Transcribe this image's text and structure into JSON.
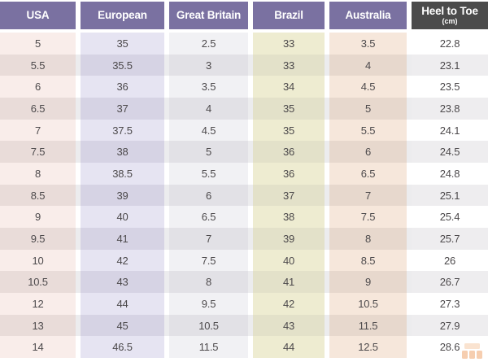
{
  "chart_data": {
    "type": "table",
    "columns": [
      {
        "label": "USA",
        "sub": "",
        "header_bg": "#7a71a1",
        "cell_light": "#f9edea",
        "cell_dark": "#e9dcd9"
      },
      {
        "label": "European",
        "sub": "",
        "header_bg": "#7a71a1",
        "cell_light": "#e6e4f2",
        "cell_dark": "#d6d3e4"
      },
      {
        "label": "Great Britain",
        "sub": "",
        "header_bg": "#7a71a1",
        "cell_light": "#f1f1f4",
        "cell_dark": "#e2e1e6"
      },
      {
        "label": "Brazil",
        "sub": "",
        "header_bg": "#7a71a1",
        "cell_light": "#eeecd1",
        "cell_dark": "#e3e1c9"
      },
      {
        "label": "Australia",
        "sub": "",
        "header_bg": "#7a71a1",
        "cell_light": "#f6e7db",
        "cell_dark": "#e7d8cd"
      },
      {
        "label": "Heel to Toe",
        "sub": "(cm)",
        "header_bg": "#4b4b4b",
        "cell_light": "#ffffff",
        "cell_dark": "#eeedef"
      }
    ],
    "rows": [
      [
        "5",
        "35",
        "2.5",
        "33",
        "3.5",
        "22.8"
      ],
      [
        "5.5",
        "35.5",
        "3",
        "33",
        "4",
        "23.1"
      ],
      [
        "6",
        "36",
        "3.5",
        "34",
        "4.5",
        "23.5"
      ],
      [
        "6.5",
        "37",
        "4",
        "35",
        "5",
        "23.8"
      ],
      [
        "7",
        "37.5",
        "4.5",
        "35",
        "5.5",
        "24.1"
      ],
      [
        "7.5",
        "38",
        "5",
        "36",
        "6",
        "24.5"
      ],
      [
        "8",
        "38.5",
        "5.5",
        "36",
        "6.5",
        "24.8"
      ],
      [
        "8.5",
        "39",
        "6",
        "37",
        "7",
        "25.1"
      ],
      [
        "9",
        "40",
        "6.5",
        "38",
        "7.5",
        "25.4"
      ],
      [
        "9.5",
        "41",
        "7",
        "39",
        "8",
        "25.7"
      ],
      [
        "10",
        "42",
        "7.5",
        "40",
        "8.5",
        "26"
      ],
      [
        "10.5",
        "43",
        "8",
        "41",
        "9",
        "26.7"
      ],
      [
        "12",
        "44",
        "9.5",
        "42",
        "10.5",
        "27.3"
      ],
      [
        "13",
        "45",
        "10.5",
        "43",
        "11.5",
        "27.9"
      ],
      [
        "14",
        "46.5",
        "11.5",
        "44",
        "12.5",
        "28.6"
      ]
    ],
    "row_stripe_color": "#ececee",
    "row_base_color": "#ffffff",
    "header_text_color": "#ffffff",
    "text_color": "#4d4a4c",
    "legend_position": "none",
    "grid": false
  },
  "watermark": {
    "icon": "orange-blocks-logo",
    "color_top": "#f6c9a2",
    "color_bottom": "#ee9e63"
  }
}
